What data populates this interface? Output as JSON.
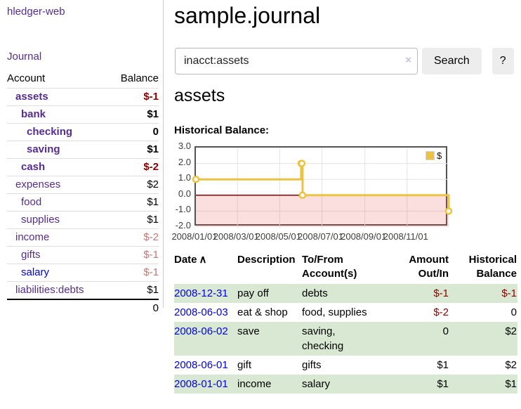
{
  "app": {
    "title": "hledger-web"
  },
  "colors": {
    "link_purple": "#552d90",
    "link_blue": "#0000e8",
    "negative": "#8b0000",
    "negative_dim": "#c07777",
    "row_stripe_green": "#d9e8d2",
    "series_gold": "#edc240",
    "below_zero_pink": "#f8dada",
    "zero_line_red": "#8b0000"
  },
  "sidebar": {
    "journal_label": "Journal",
    "accounts": {
      "headers": [
        "Account",
        "Balance"
      ],
      "rows": [
        {
          "name": "assets",
          "balance": "$-1"
        },
        {
          "name": "bank",
          "balance": "$1"
        },
        {
          "name": "checking",
          "balance": "0"
        },
        {
          "name": "saving",
          "balance": "$1"
        },
        {
          "name": "cash",
          "balance": "$-2"
        },
        {
          "name": "expenses",
          "balance": "$2"
        },
        {
          "name": "food",
          "balance": "$1"
        },
        {
          "name": "supplies",
          "balance": "$1"
        },
        {
          "name": "income",
          "balance": "$-2"
        },
        {
          "name": "gifts",
          "balance": "$-1"
        },
        {
          "name": "salary",
          "balance": "$-1"
        },
        {
          "name": "liabilities:debts",
          "balance": "$1"
        }
      ],
      "total": "0"
    }
  },
  "main": {
    "title": "sample.journal",
    "search": {
      "value": "inacct:assets",
      "clear_icon": "×",
      "button_label": "Search",
      "help_label": "?"
    },
    "account_heading": "assets"
  },
  "chart_data": {
    "type": "line",
    "title": "Historical Balance:",
    "step": true,
    "series": [
      {
        "name": "$",
        "color": "#edc240",
        "points": [
          [
            "2008/01/01",
            1
          ],
          [
            "2008/06/01",
            2
          ],
          [
            "2008/06/02",
            2
          ],
          [
            "2008/06/03",
            0
          ],
          [
            "2008/12/31",
            -1
          ]
        ]
      }
    ],
    "x_range": [
      "2008/01/01",
      "2008/12/31"
    ],
    "xticks": [
      "2008/01/01",
      "2008/03/01",
      "2008/05/01",
      "2008/07/01",
      "2008/09/01",
      "2008/11/01"
    ],
    "yticks": [
      "3.0",
      "2.0",
      "1.0",
      "0.0",
      "-1.0",
      "-2.0"
    ],
    "ylim": [
      -2,
      3
    ],
    "grid": true,
    "grid_color": "#e3e3e3",
    "legend": {
      "label": "$",
      "position": "top-right"
    },
    "markings": {
      "below_zero_fill": "rgba(235,80,80,0.18)",
      "zero_line_color": "#8b0000"
    }
  },
  "register": {
    "headers": {
      "date": "Date",
      "sort_indicator": "∧",
      "description": "Description",
      "accounts": "To/From Account(s)",
      "amount": "Amount Out/In",
      "balance": "Historical Balance"
    },
    "rows": [
      {
        "date": "2008-12-31",
        "description": "pay off",
        "accounts": "debts",
        "amount": "$-1",
        "balance": "$-1"
      },
      {
        "date": "2008-06-03",
        "description": "eat & shop",
        "accounts": "food, supplies",
        "amount": "$-2",
        "balance": "0"
      },
      {
        "date": "2008-06-02",
        "description": "save",
        "accounts": "saving, checking",
        "amount": "0",
        "balance": "$2"
      },
      {
        "date": "2008-06-01",
        "description": "gift",
        "accounts": "gifts",
        "amount": "$1",
        "balance": "$2"
      },
      {
        "date": "2008-01-01",
        "description": "income",
        "accounts": "salary",
        "amount": "$1",
        "balance": "$1"
      }
    ]
  }
}
